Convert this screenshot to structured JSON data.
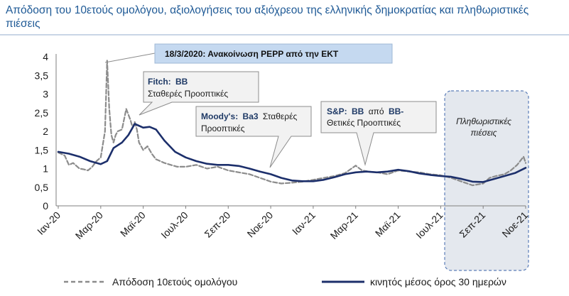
{
  "title": "Απόδοση του 10ετούς ομολόγου, αξιολογήσεις του αξιόχρεου της ελληνικής δημοκρατίας  και πληθωριστικές πιέσεις",
  "colors": {
    "title": "#1f5a96",
    "ma_line": "#1c2f6b",
    "yield_line": "#8c8c8c",
    "callout_bg": "#f2f2f2",
    "pepp_bg": "#c5d9f0",
    "inflation_box": "#e4e8ee",
    "inflation_border": "#5b7db8"
  },
  "chart_data": {
    "type": "line",
    "title": "Απόδοση του 10ετούς ομολόγου, αξιολογήσεις του αξιόχρεου της ελληνικής δημοκρατίας  και πληθωριστικές πιέσεις",
    "ylim": [
      0,
      4
    ],
    "yticks": [
      "0",
      "0,5",
      "1",
      "1,5",
      "2",
      "2,5",
      "3",
      "3,5",
      "4"
    ],
    "ytick_values": [
      0,
      0.5,
      1,
      1.5,
      2,
      2.5,
      3,
      3.5,
      4
    ],
    "xticks": [
      "Ιαν-20",
      "Μαρ-20",
      "Μαϊ-20",
      "Ιουλ-20",
      "Σεπ-20",
      "Νοε-20",
      "Ιαν-21",
      "Μαρ-21",
      "Μαϊ-21",
      "Ιουλ-21",
      "Σεπ-21",
      "Νοε-21"
    ],
    "xtick_months": [
      0,
      2,
      4,
      6,
      8,
      10,
      12,
      14,
      16,
      18,
      20,
      22
    ],
    "xlim_months": [
      0,
      22
    ],
    "legend_position": "bottom",
    "series": [
      {
        "name": "Απόδοση  10ετούς ομολόγου",
        "style": "dashed",
        "x": [
          0,
          0.3,
          0.5,
          0.7,
          1.0,
          1.2,
          1.4,
          1.6,
          1.8,
          2.0,
          2.2,
          2.3,
          2.4,
          2.5,
          2.6,
          2.7,
          2.8,
          3.0,
          3.2,
          3.4,
          3.5,
          3.6,
          3.7,
          3.8,
          4.0,
          4.2,
          4.4,
          4.6,
          4.8,
          5.0,
          5.3,
          5.6,
          6.0,
          6.5,
          7.0,
          7.5,
          8.0,
          8.5,
          9.0,
          9.5,
          10.0,
          10.5,
          11.0,
          11.5,
          12.0,
          12.5,
          13.0,
          13.5,
          14.0,
          14.3,
          14.6,
          15.0,
          15.5,
          16.0,
          16.5,
          17.0,
          17.5,
          18.0,
          18.5,
          19.0,
          19.5,
          20.0,
          20.3,
          20.6,
          21.0,
          21.3,
          21.6,
          21.9,
          22.0
        ],
        "values": [
          1.43,
          1.35,
          1.1,
          1.15,
          1.0,
          0.98,
          0.95,
          1.05,
          1.2,
          1.3,
          2.0,
          3.9,
          2.6,
          1.9,
          1.7,
          1.9,
          2.0,
          2.05,
          2.6,
          2.3,
          2.1,
          2.25,
          2.05,
          1.7,
          1.5,
          1.6,
          1.4,
          1.25,
          1.2,
          1.15,
          1.1,
          1.05,
          1.05,
          1.1,
          1.0,
          1.05,
          0.95,
          0.9,
          0.85,
          0.75,
          0.65,
          0.6,
          0.62,
          0.65,
          0.7,
          0.75,
          0.8,
          0.88,
          1.08,
          0.95,
          0.92,
          0.9,
          0.85,
          0.95,
          0.92,
          0.9,
          0.85,
          0.82,
          0.75,
          0.65,
          0.55,
          0.6,
          0.75,
          0.8,
          0.85,
          0.95,
          1.1,
          1.32,
          1.15
        ]
      },
      {
        "name": "κινητός  μέσος όρος 30 ημερών",
        "style": "solid",
        "x": [
          0,
          0.5,
          1.0,
          1.5,
          2.0,
          2.3,
          2.6,
          3.0,
          3.3,
          3.6,
          4.0,
          4.3,
          4.6,
          5.0,
          5.5,
          6.0,
          6.5,
          7.0,
          7.5,
          8.0,
          8.5,
          9.0,
          9.5,
          10.0,
          10.5,
          11.0,
          11.5,
          12.0,
          12.5,
          13.0,
          13.5,
          14.0,
          14.5,
          15.0,
          15.5,
          16.0,
          16.5,
          17.0,
          17.5,
          18.0,
          18.5,
          19.0,
          19.5,
          20.0,
          20.5,
          21.0,
          21.5,
          22.0
        ],
        "values": [
          1.45,
          1.4,
          1.32,
          1.2,
          1.12,
          1.2,
          1.55,
          1.7,
          1.9,
          2.2,
          2.1,
          2.12,
          2.05,
          1.75,
          1.45,
          1.3,
          1.2,
          1.13,
          1.1,
          1.1,
          1.07,
          1.0,
          0.92,
          0.85,
          0.75,
          0.68,
          0.66,
          0.66,
          0.7,
          0.77,
          0.85,
          0.9,
          0.92,
          0.9,
          0.92,
          0.97,
          0.93,
          0.87,
          0.83,
          0.8,
          0.78,
          0.72,
          0.65,
          0.64,
          0.72,
          0.8,
          0.88,
          1.02
        ]
      }
    ],
    "annotations": {
      "pepp": "18/3/2020: Ανακοίνωση PEPP από την ΕΚΤ",
      "fitch_bold": "Fitch:",
      "fitch_rating": "BB",
      "fitch_outlook": "Σταθερές Προοπτικές",
      "moodys_bold": "Moody's:",
      "moodys_rating": "Ba3",
      "moodys_rest": "Σταθερές",
      "moodys_outlook": "Προοπτικές",
      "sp_bold": "S&P:",
      "sp_rating": "BB",
      "sp_from": "από",
      "sp_prev": "BB-",
      "sp_outlook": "Θετικές Προοπτικές",
      "inflation_line1": "Πληθωριστικές",
      "inflation_line2": "πιέσεις"
    }
  }
}
